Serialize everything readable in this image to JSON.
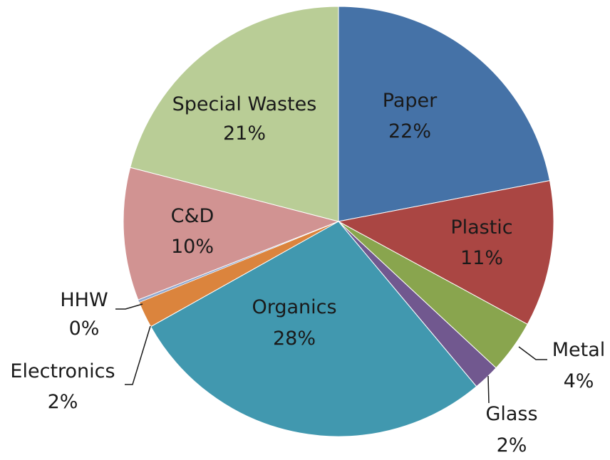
{
  "chart_data": {
    "type": "pie",
    "title": "",
    "start_angle_deg": 0,
    "direction": "clockwise",
    "slices": [
      {
        "label": "Paper",
        "value": 22,
        "display": "22%",
        "color": "#4572A7"
      },
      {
        "label": "Plastic",
        "value": 11,
        "display": "11%",
        "color": "#AA4643"
      },
      {
        "label": "Metal",
        "value": 4,
        "display": "4%",
        "color": "#89A54E"
      },
      {
        "label": "Glass",
        "value": 2,
        "display": "2%",
        "color": "#71588F"
      },
      {
        "label": "Organics",
        "value": 28,
        "display": "28%",
        "color": "#4198AF"
      },
      {
        "label": "Electronics",
        "value": 2,
        "display": "2%",
        "color": "#DB843D"
      },
      {
        "label": "HHW",
        "value": 0,
        "display": "0%",
        "color": "#93A9CF"
      },
      {
        "label": "C&D",
        "value": 10,
        "display": "10%",
        "color": "#D19392"
      },
      {
        "label": "Special Wastes",
        "value": 21,
        "display": "21%",
        "color": "#B9CD96"
      }
    ]
  }
}
